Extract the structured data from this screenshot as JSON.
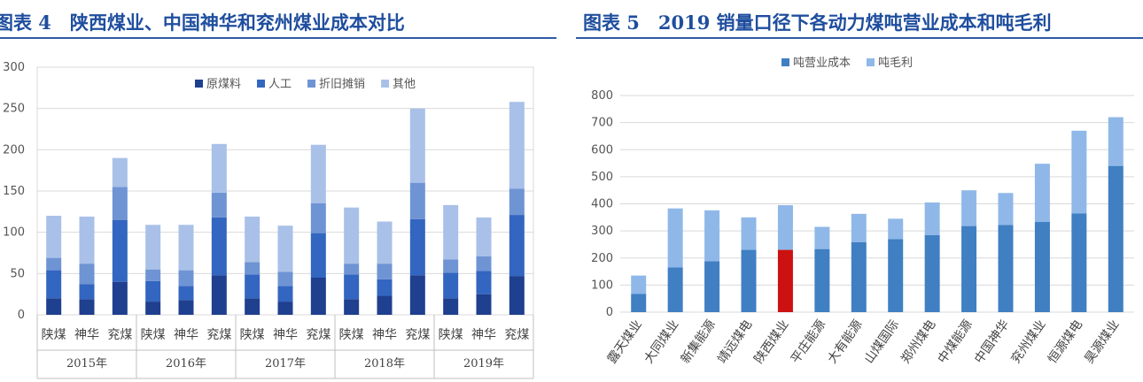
{
  "chart_data": [
    {
      "type": "bar",
      "stacked": true,
      "title": "图表 4　陕西煤业、中国神华和兖州煤业成本对比",
      "title_display": "图表 4　陕西煤业、中国神华和兖州煤业成本对比",
      "groups": [
        "2015年",
        "2016年",
        "2017年",
        "2018年",
        "2019年"
      ],
      "categories": [
        "陕煤",
        "神华",
        "兖煤"
      ],
      "series": [
        {
          "name": "原煤料",
          "color": "#1f3f8f",
          "values": [
            [
              20,
              19,
              40
            ],
            [
              16,
              18,
              48
            ],
            [
              20,
              16,
              45
            ],
            [
              19,
              23,
              48
            ],
            [
              20,
              25,
              47
            ]
          ]
        },
        {
          "name": "人工",
          "color": "#3366c0",
          "values": [
            [
              34,
              18,
              75
            ],
            [
              25,
              17,
              70
            ],
            [
              29,
              19,
              54
            ],
            [
              30,
              20,
              68
            ],
            [
              31,
              28,
              74
            ]
          ]
        },
        {
          "name": "折旧摊销",
          "color": "#6f94d4",
          "values": [
            [
              15,
              25,
              40
            ],
            [
              14,
              19,
              30
            ],
            [
              15,
              17,
              36
            ],
            [
              13,
              19,
              44
            ],
            [
              16,
              18,
              32
            ]
          ]
        },
        {
          "name": "其他",
          "color": "#a9c1e8",
          "values": [
            [
              51,
              57,
              35
            ],
            [
              54,
              55,
              59
            ],
            [
              55,
              56,
              71
            ],
            [
              68,
              51,
              90
            ],
            [
              66,
              47,
              105
            ]
          ]
        }
      ],
      "ylim": [
        0,
        300
      ],
      "yticks": [
        0,
        50,
        100,
        150,
        200,
        250,
        300
      ],
      "ytick_labels": [
        "0",
        "50",
        "100",
        "150",
        "200",
        "250",
        "300"
      ],
      "grid": true,
      "legend_position": "top-right"
    },
    {
      "type": "bar",
      "stacked": true,
      "title": "图表 5　2019 销量口径下各动力煤吨营业成本和吨毛利",
      "title_display": "图表 5　2019 销量口径下各动力煤吨营业成本和吨毛利",
      "categories": [
        "露天煤业",
        "大同煤业",
        "新集能源",
        "靖远煤电",
        "陕西煤业",
        "平庄能源",
        "大有能源",
        "山煤国际",
        "郑州煤电",
        "中煤能源",
        "中国神华",
        "兖州煤业",
        "恒源煤电",
        "昊源煤业"
      ],
      "series": [
        {
          "name": "吨营业成本",
          "color": "#3f7fc2",
          "values": [
            67,
            165,
            188,
            230,
            230,
            233,
            258,
            270,
            285,
            318,
            322,
            333,
            365,
            540
          ]
        },
        {
          "name": "吨毛利",
          "color": "#8fb8e8",
          "values": [
            68,
            218,
            188,
            120,
            165,
            82,
            105,
            75,
            120,
            132,
            118,
            215,
            305,
            180
          ]
        }
      ],
      "highlight": {
        "category": "陕西煤业",
        "series": "吨营业成本",
        "color": "#cc1111"
      },
      "ylim": [
        0,
        800
      ],
      "yticks": [
        0,
        100,
        200,
        300,
        400,
        500,
        600,
        700,
        800
      ],
      "ytick_labels": [
        "0",
        "100",
        "200",
        "300",
        "400",
        "500",
        "600",
        "700",
        "800"
      ],
      "grid": true,
      "legend_position": "top"
    }
  ]
}
